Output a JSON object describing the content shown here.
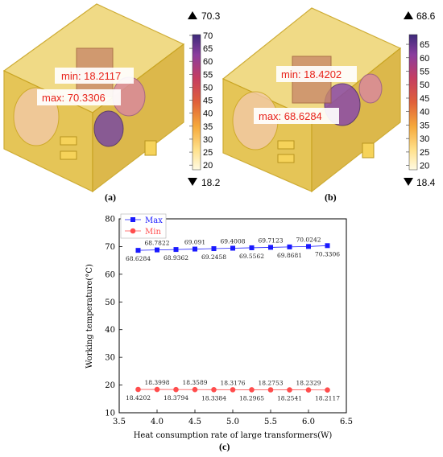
{
  "panels": {
    "a": {
      "label": "(a)",
      "min_text": "min: 18.2117",
      "max_text": "max: 70.3306",
      "colorbar": {
        "top": "70.3",
        "bottom": "18.2",
        "ticks": [
          "70",
          "65",
          "60",
          "55",
          "50",
          "45",
          "40",
          "35",
          "30",
          "25",
          "20"
        ],
        "top_marker_icon": "triangle-up-icon",
        "bottom_marker_icon": "triangle-down-icon"
      }
    },
    "b": {
      "label": "(b)",
      "min_text": "min: 18.4202",
      "max_text": "max: 68.6284",
      "colorbar": {
        "top": "68.6",
        "bottom": "18.4",
        "ticks": [
          "65",
          "60",
          "55",
          "50",
          "45",
          "40",
          "35",
          "30",
          "25",
          "20"
        ],
        "top_marker_icon": "triangle-up-icon",
        "bottom_marker_icon": "triangle-down-icon"
      }
    },
    "c": {
      "label": "(c)"
    }
  },
  "colors": {
    "max_series": "#1a1aff",
    "min_series": "#ff4d4d",
    "sim_label": "#e8231b",
    "housing": "#e8c640"
  },
  "chart_data": {
    "type": "scatter",
    "xlabel": "Heat consumption rate of large transformers(W)",
    "ylabel": "Working temperature(°C)",
    "xlim": [
      3.5,
      6.5
    ],
    "ylim": [
      10,
      80
    ],
    "xticks": [
      "3.5",
      "4.0",
      "4.5",
      "5.0",
      "5.5",
      "6.0",
      "6.5"
    ],
    "yticks": [
      "10",
      "20",
      "30",
      "40",
      "50",
      "60",
      "70",
      "80"
    ],
    "legend_position": "top-left",
    "x": [
      3.75,
      4.0,
      4.25,
      4.5,
      4.75,
      5.0,
      5.25,
      5.5,
      5.75,
      6.0,
      6.25
    ],
    "series": [
      {
        "name": "Max",
        "marker": "square",
        "values": [
          68.6284,
          68.7822,
          68.9362,
          69.091,
          69.2458,
          69.4008,
          69.5562,
          69.7123,
          69.8681,
          70.0242,
          70.3306
        ],
        "labels": [
          "68.6284",
          "68.7822",
          "68.9362",
          "69.091",
          "69.2458",
          "69.4008",
          "69.5562",
          "69.7123",
          "69.8681",
          "70.0242",
          "70.3306"
        ]
      },
      {
        "name": "Min",
        "marker": "circle",
        "values": [
          18.4202,
          18.3998,
          18.3794,
          18.3589,
          18.3384,
          18.3176,
          18.2965,
          18.2753,
          18.2541,
          18.2329,
          18.2117
        ],
        "labels": [
          "18.4202",
          "18.3998",
          "18.3794",
          "18.3589",
          "18.3384",
          "18.3176",
          "18.2965",
          "18.2753",
          "18.2541",
          "18.2329",
          "18.2117"
        ]
      }
    ]
  }
}
